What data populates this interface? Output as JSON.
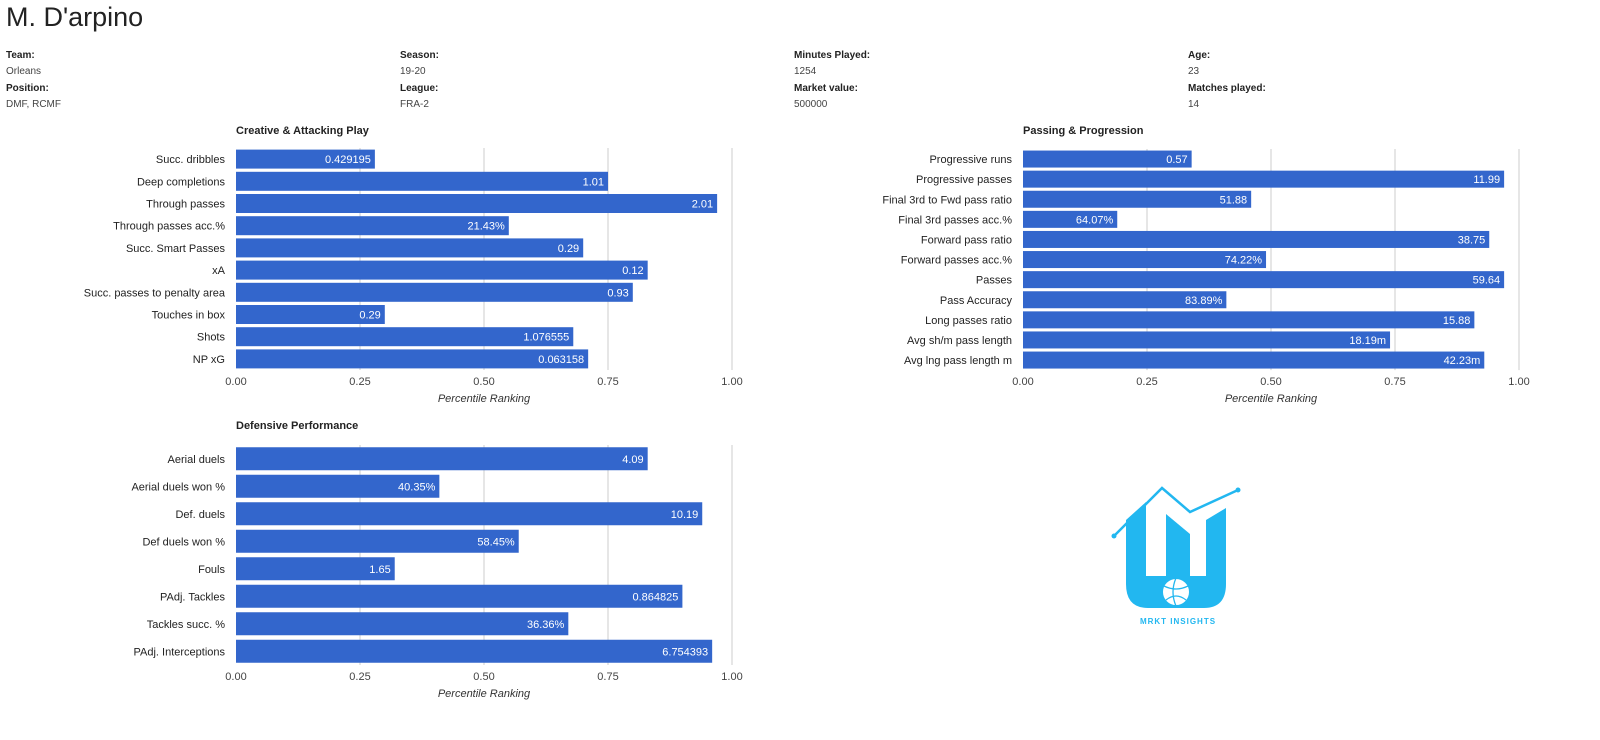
{
  "player": {
    "name": "M. D'arpino"
  },
  "info": [
    {
      "label": "Team:",
      "value": "Orleans"
    },
    {
      "label": "Season:",
      "value": "19-20"
    },
    {
      "label": "Minutes Played:",
      "value": "1254"
    },
    {
      "label": "Age:",
      "value": "23"
    },
    {
      "label": "Position:",
      "value": "DMF, RCMF"
    },
    {
      "label": "League:",
      "value": "FRA-2"
    },
    {
      "label": "Market value:",
      "value": "500000"
    },
    {
      "label": "Matches played:",
      "value": "14"
    }
  ],
  "chart_data": [
    {
      "type": "bar",
      "orientation": "horizontal",
      "title": "Creative & Attacking Play",
      "xlabel": "Percentile Ranking",
      "xlim": [
        0,
        1
      ],
      "ticks": [
        "0.00",
        "0.25",
        "0.50",
        "0.75",
        "1.00"
      ],
      "categories": [
        "Succ. dribbles",
        "Deep completions",
        "Through passes",
        "Through passes acc.%",
        "Succ. Smart Passes",
        "xA",
        "Succ. passes to penalty area",
        "Touches in box",
        "Shots",
        "NP xG"
      ],
      "values": [
        0.28,
        0.75,
        0.97,
        0.55,
        0.7,
        0.83,
        0.8,
        0.3,
        0.68,
        0.71
      ],
      "data_labels": [
        "0.429195",
        "1.01",
        "2.01",
        "21.43%",
        "0.29",
        "0.12",
        "0.93",
        "0.29",
        "1.076555",
        "0.063158"
      ],
      "grid": true
    },
    {
      "type": "bar",
      "orientation": "horizontal",
      "title": "Passing & Progression",
      "xlabel": "Percentile Ranking",
      "xlim": [
        0,
        1
      ],
      "ticks": [
        "0.00",
        "0.25",
        "0.50",
        "0.75",
        "1.00"
      ],
      "categories": [
        "Progressive runs",
        "Progressive passes",
        "Final 3rd to Fwd pass ratio",
        "Final 3rd passes acc.%",
        "Forward pass ratio",
        "Forward passes acc.%",
        "Passes",
        "Pass Accuracy",
        "Long passes ratio",
        "Avg sh/m pass length",
        "Avg lng pass length m"
      ],
      "values": [
        0.34,
        0.97,
        0.46,
        0.19,
        0.94,
        0.49,
        0.97,
        0.41,
        0.91,
        0.74,
        0.93
      ],
      "data_labels": [
        "0.57",
        "11.99",
        "51.88",
        "64.07%",
        "38.75",
        "74.22%",
        "59.64",
        "83.89%",
        "15.88",
        "18.19m",
        "42.23m"
      ],
      "grid": true
    },
    {
      "type": "bar",
      "orientation": "horizontal",
      "title": "Defensive Performance",
      "xlabel": "Percentile Ranking",
      "xlim": [
        0,
        1
      ],
      "ticks": [
        "0.00",
        "0.25",
        "0.50",
        "0.75",
        "1.00"
      ],
      "categories": [
        "Aerial duels",
        "Aerial duels won %",
        "Def. duels",
        "Def duels won %",
        "Fouls",
        "PAdj. Tackles",
        "Tackles succ. %",
        "PAdj. Interceptions"
      ],
      "values": [
        0.83,
        0.41,
        0.94,
        0.57,
        0.32,
        0.9,
        0.67,
        0.96
      ],
      "data_labels": [
        "4.09",
        "40.35%",
        "10.19",
        "58.45%",
        "1.65",
        "0.864825",
        "36.36%",
        "6.754393"
      ],
      "grid": true
    }
  ],
  "logo": {
    "text": "MRKT INSIGHTS",
    "color": "#22b7f0"
  },
  "colors": {
    "bar": "#3366cc",
    "grid": "#cccccc"
  }
}
